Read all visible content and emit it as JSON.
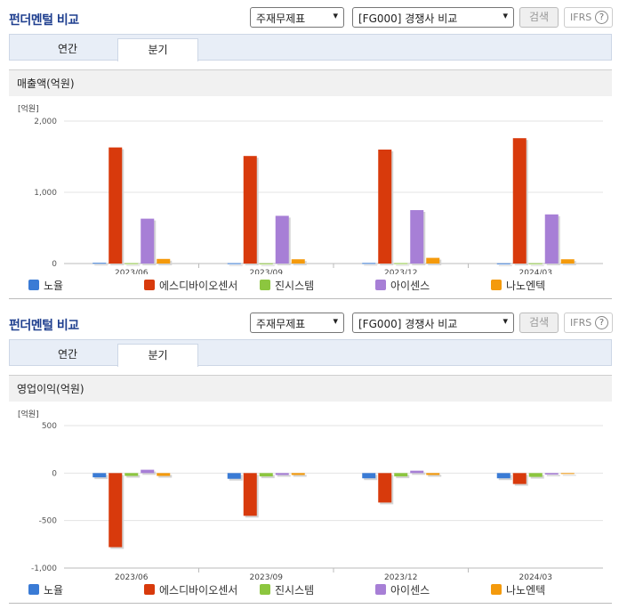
{
  "colors": {
    "노율": "#3a7bd5",
    "에스디바이오센서": "#d83a0c",
    "진시스템": "#8cc63f",
    "아이센스": "#a77fd6",
    "나노엔텍": "#f49a0c"
  },
  "sections": [
    {
      "header": {
        "title": "펀더멘털 비교",
        "select_1": "주재무제표",
        "select_2": "[FG000] 경쟁사 비교",
        "search_label": "검색",
        "ifrs_label": "IFRS",
        "help_glyph": "?"
      },
      "tabs": [
        "연간",
        "분기"
      ],
      "metric_title": "매출액(억원)",
      "legend": [
        "노율",
        "에스디바이오센서",
        "진시스템",
        "아이센스",
        "나노엔텍"
      ]
    },
    {
      "header": {
        "title": "펀더멘털 비교",
        "select_1": "주재무제표",
        "select_2": "[FG000] 경쟁사 비교",
        "search_label": "검색",
        "ifrs_label": "IFRS",
        "help_glyph": "?"
      },
      "tabs": [
        "연간",
        "분기"
      ],
      "metric_title": "영업이익(억원)",
      "legend": [
        "노율",
        "에스디바이오센서",
        "진시스템",
        "아이센스",
        "나노엔텍"
      ]
    }
  ],
  "chart_data": [
    {
      "type": "bar",
      "unit_label": "[억원]",
      "categories": [
        "2023/06",
        "2023/09",
        "2023/12",
        "2024/03"
      ],
      "ylim": [
        0,
        2000
      ],
      "yticks": [
        0,
        1000,
        2000
      ],
      "ytick_labels": [
        "0",
        "1,000",
        "2,000"
      ],
      "grid": true,
      "legend_position": "bottom",
      "series": [
        {
          "name": "노율",
          "values": [
            10,
            5,
            8,
            3
          ]
        },
        {
          "name": "에스디바이오센서",
          "values": [
            1630,
            1510,
            1600,
            1760
          ]
        },
        {
          "name": "진시스템",
          "values": [
            5,
            3,
            6,
            4
          ]
        },
        {
          "name": "아이센스",
          "values": [
            630,
            670,
            750,
            690
          ]
        },
        {
          "name": "나노엔텍",
          "values": [
            65,
            60,
            80,
            60
          ]
        }
      ]
    },
    {
      "type": "bar",
      "unit_label": "[억원]",
      "categories": [
        "2023/06",
        "2023/09",
        "2023/12",
        "2024/03"
      ],
      "ylim": [
        -1000,
        500
      ],
      "yticks": [
        -1000,
        -500,
        0,
        500
      ],
      "ytick_labels": [
        "-1,000",
        "-500",
        "0",
        "500"
      ],
      "grid": true,
      "legend_position": "bottom",
      "series": [
        {
          "name": "노율",
          "values": [
            -45,
            -60,
            -55,
            -55
          ]
        },
        {
          "name": "에스디바이오센서",
          "values": [
            -780,
            -450,
            -310,
            -115
          ]
        },
        {
          "name": "진시스템",
          "values": [
            -30,
            -35,
            -35,
            -40
          ]
        },
        {
          "name": "아이센스",
          "values": [
            35,
            -20,
            25,
            -15
          ]
        },
        {
          "name": "나노엔텍",
          "values": [
            -30,
            -20,
            -20,
            -5
          ]
        }
      ]
    }
  ]
}
